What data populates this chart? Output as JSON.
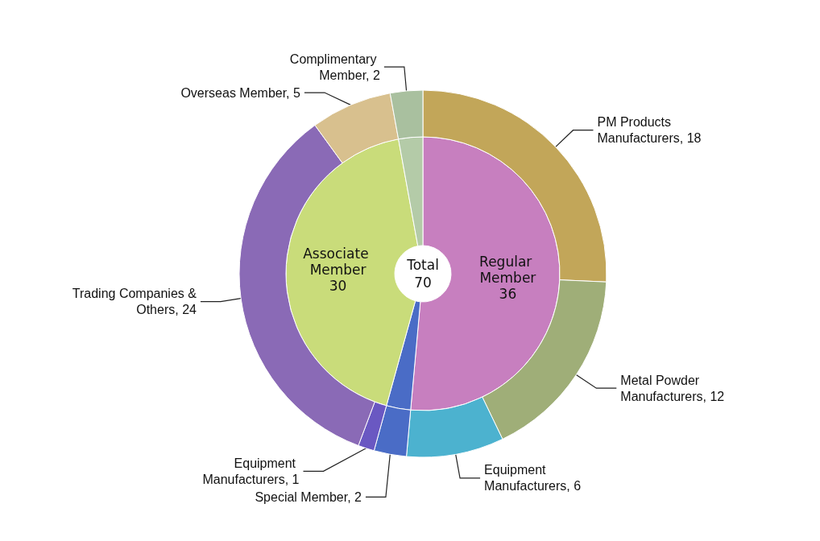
{
  "chart_data": [
    {
      "type": "donut",
      "legend": false,
      "annotations": [
        "Total\n70"
      ],
      "categories": [
        "Regular Member",
        null,
        "Associate Member",
        null
      ],
      "values": [
        36,
        2,
        30,
        2
      ],
      "colors": [
        "#c77fbf",
        "#4a6cc6",
        "#c9dc7a",
        "#b4cba8"
      ],
      "value_labels": [
        "36",
        null,
        "30",
        null
      ]
    },
    {
      "type": "donut",
      "legend": false,
      "categories": [
        "PM Products Manufacturers",
        "Metal Powder Manufacturers",
        "Equipment Manufacturers",
        "Special Member",
        "Equipment Manufacturers",
        "Trading Companies & Others",
        "Overseas Member",
        "Complimentary Member"
      ],
      "values": [
        18,
        12,
        6,
        2,
        1,
        24,
        5,
        2
      ],
      "colors": [
        "#c2a659",
        "#9fae78",
        "#4cb2cf",
        "#4a6cc6",
        "#6a58c2",
        "#8a6ab6",
        "#d8c08e",
        "#a9c09f"
      ],
      "value_labels": [
        "18",
        "12",
        "6",
        "2",
        "1",
        "24",
        "5",
        "2"
      ]
    }
  ]
}
